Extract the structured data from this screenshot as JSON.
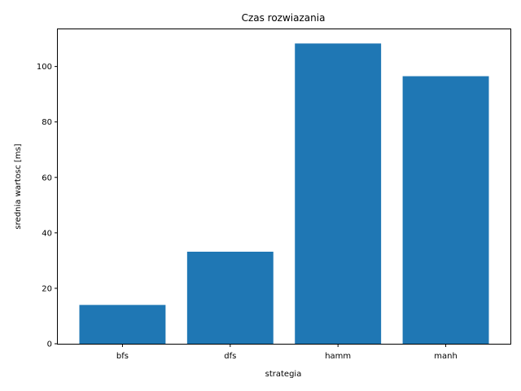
{
  "chart_data": {
    "type": "bar",
    "title": "Czas rozwiazania",
    "xlabel": "strategia",
    "ylabel": "srednia wartosc [ms]",
    "categories": [
      "bfs",
      "dfs",
      "hamm",
      "manh"
    ],
    "values": [
      14.0,
      33.2,
      108.3,
      96.5
    ],
    "ylim": [
      0,
      113.7
    ],
    "yticks": [
      0,
      20,
      40,
      60,
      80,
      100
    ],
    "bar_color": "#1f77b4",
    "grid": false,
    "legend": "none"
  }
}
